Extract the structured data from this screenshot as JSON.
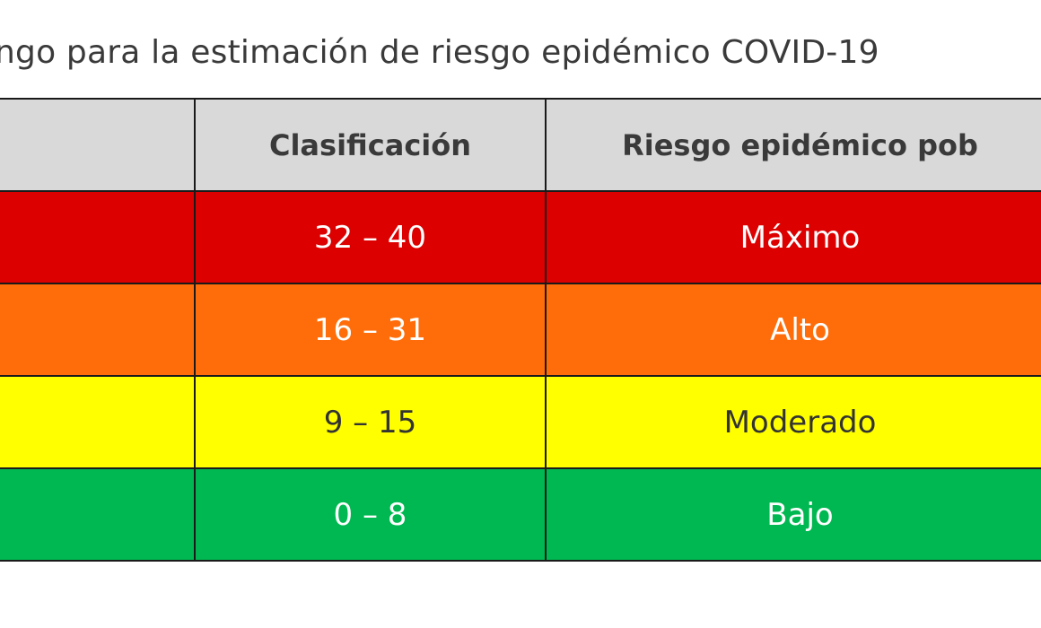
{
  "title": "ngo para la estimación de riesgo epidémico COVID-19",
  "table": {
    "headers": [
      "",
      "Clasificación",
      "Riesgo epidémico pob"
    ],
    "rows": [
      {
        "range": "32 – 40",
        "risk": "Máximo",
        "bg": "#dd0000",
        "fg": "#ffffff"
      },
      {
        "range": "16 – 31",
        "risk": "Alto",
        "bg": "#ff6d0a",
        "fg": "#ffffff"
      },
      {
        "range": "9 – 15",
        "risk": "Moderado",
        "bg": "#ffff00",
        "fg": "#333333"
      },
      {
        "range": "0 – 8",
        "risk": "Bajo",
        "bg": "#00b851",
        "fg": "#ffffff"
      }
    ]
  }
}
